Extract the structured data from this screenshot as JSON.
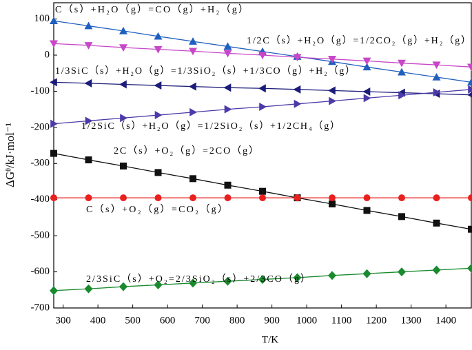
{
  "chart_data": {
    "type": "line",
    "x_label": "T/K",
    "y_label": "ΔGᶿ/kJ·mol⁻¹",
    "x": [
      273,
      373,
      473,
      573,
      673,
      773,
      873,
      973,
      1073,
      1173,
      1273,
      1373,
      1473
    ],
    "xlim": [
      273,
      1473
    ],
    "xticks": [
      300,
      400,
      500,
      600,
      700,
      800,
      900,
      1000,
      1100,
      1200,
      1300,
      1400
    ],
    "ylim": [
      -700,
      145
    ],
    "yticks": [
      -700,
      -600,
      -500,
      -400,
      -300,
      -200,
      -100,
      0,
      100
    ],
    "series": [
      {
        "name": "C（s）+H₂O（g）=CO（g）+H₂（g）",
        "color": "#1f5fbf",
        "marker": "triangle-up",
        "values": [
          95,
          81,
          67,
          52,
          38,
          24,
          10,
          -4,
          -18,
          -33,
          -47,
          -61,
          -75
        ]
      },
      {
        "name": "1/2C（s）+H₂O（g）=1/2CO₂（g）+H₂（g）",
        "color": "#c846c8",
        "marker": "triangle-down",
        "values": [
          32,
          27,
          21,
          16,
          11,
          5,
          0,
          -6,
          -11,
          -16,
          -22,
          -27,
          -33
        ]
      },
      {
        "name": "1/3SiC（s）+H₂O（g）=1/3SiO₂（s）+1/3CO（g）+H₂（g）",
        "color": "#1c1c7a",
        "marker": "triangle-left",
        "values": [
          -75,
          -78,
          -81,
          -84,
          -87,
          -90,
          -92,
          -95,
          -98,
          -101,
          -104,
          -107,
          -110
        ]
      },
      {
        "name": "1/2SiC（s）+H₂O（g）=1/2SiO₂（s）+1/2CH₄（g）",
        "color": "#4b3aa8",
        "marker": "triangle-right",
        "values": [
          -190,
          -182,
          -174,
          -166,
          -158,
          -150,
          -143,
          -135,
          -127,
          -119,
          -111,
          -103,
          -95
        ]
      },
      {
        "name": "2C（s）+O₂（g）=2CO（g）",
        "color": "#111111",
        "marker": "square",
        "values": [
          -272,
          -290,
          -307,
          -325,
          -342,
          -360,
          -377,
          -395,
          -412,
          -430,
          -447,
          -465,
          -482
        ]
      },
      {
        "name": "C（s）+O₂（g）=CO₂（g）",
        "color": "#e8201e",
        "marker": "circle",
        "values": [
          -395,
          -395,
          -395,
          -395,
          -395,
          -395,
          -395,
          -395,
          -395,
          -395,
          -395,
          -395,
          -395
        ]
      },
      {
        "name": "2/3SiC（s）+O₂=2/3SiO₂（s）+2/3CO（g）",
        "color": "#1a8a2e",
        "marker": "diamond",
        "values": [
          -652,
          -647,
          -641,
          -636,
          -631,
          -626,
          -621,
          -616,
          -610,
          -605,
          -600,
          -595,
          -590
        ]
      }
    ]
  }
}
